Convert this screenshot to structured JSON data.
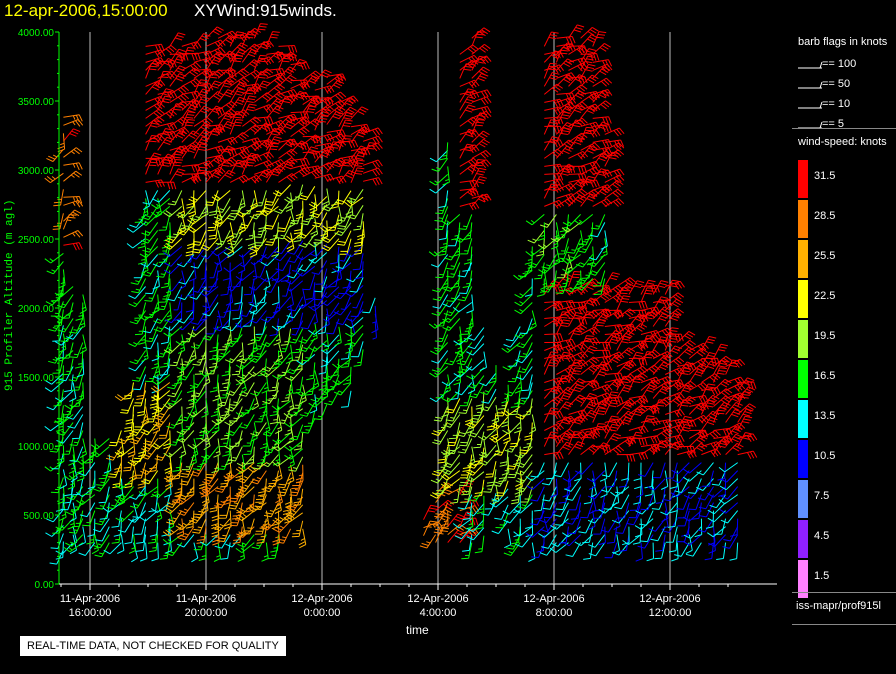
{
  "header": {
    "datetime": "12-apr-2006,15:00:00",
    "product": "XYWind:915winds."
  },
  "notice": "REAL-TIME DATA, NOT CHECKED FOR QUALITY",
  "source_label": "iss-mapr/prof915l",
  "legend": {
    "barb_title": "barb flags in knots",
    "barb_items": [
      "== 100",
      "== 50",
      "== 10",
      "== 5"
    ],
    "speed_title": "wind-speed: knots",
    "speed_levels": [
      {
        "value": "31.5",
        "color": "#ff0000"
      },
      {
        "value": "28.5",
        "color": "#ff8000"
      },
      {
        "value": "25.5",
        "color": "#ffb000"
      },
      {
        "value": "22.5",
        "color": "#ffff00"
      },
      {
        "value": "19.5",
        "color": "#a0ff30"
      },
      {
        "value": "16.5",
        "color": "#00ff00"
      },
      {
        "value": "13.5",
        "color": "#00ffff"
      },
      {
        "value": "10.5",
        "color": "#0000ff"
      },
      {
        "value": "7.5",
        "color": "#6090ff"
      },
      {
        "value": "4.5",
        "color": "#9020ff"
      },
      {
        "value": "1.5",
        "color": "#ff80ff"
      }
    ]
  },
  "chart_data": {
    "type": "scatter",
    "title": "",
    "xlabel": "time",
    "ylabel": "915 Profiler Altitude (m agl)",
    "ylim": [
      0,
      4000
    ],
    "yticks": [
      "0.00",
      "500.00",
      "1000.00",
      "1500.00",
      "2000.00",
      "2500.00",
      "3000.00",
      "3500.00",
      "4000.00"
    ],
    "xlim": [
      "11-Apr-2006 15:00:00",
      "12-Apr-2006 14:30:00"
    ],
    "xticks": [
      {
        "date": "11-Apr-2006",
        "time": "16:00:00"
      },
      {
        "date": "11-Apr-2006",
        "time": "20:00:00"
      },
      {
        "date": "12-Apr-2006",
        "time": "0:00:00"
      },
      {
        "date": "12-Apr-2006",
        "time": "4:00:00"
      },
      {
        "date": "12-Apr-2006",
        "time": "8:00:00"
      },
      {
        "date": "12-Apr-2006",
        "time": "12:00:00"
      }
    ],
    "grid": true,
    "profiles": [
      {
        "time": "11-Apr-2006 15:05",
        "bottom": 250,
        "top": 3400
      },
      {
        "time": "11-Apr-2006 15:25",
        "bottom": 300,
        "top": 2200
      },
      {
        "time": "11-Apr-2006 15:45",
        "bottom": 300,
        "top": 2100
      },
      {
        "time": "11-Apr-2006 16:10",
        "bottom": 300,
        "top": 1100
      },
      {
        "time": "11-Apr-2006 16:40",
        "bottom": 300,
        "top": 1100
      },
      {
        "time": "11-Apr-2006 17:05",
        "bottom": 300,
        "top": 1150
      },
      {
        "time": "11-Apr-2006 17:30",
        "bottom": 300,
        "top": 1500
      },
      {
        "time": "11-Apr-2006 17:55",
        "bottom": 300,
        "top": 3950
      },
      {
        "time": "11-Apr-2006 18:20",
        "bottom": 300,
        "top": 3850
      },
      {
        "time": "11-Apr-2006 18:45",
        "bottom": 300,
        "top": 3950
      },
      {
        "time": "11-Apr-2006 19:10",
        "bottom": 300,
        "top": 3950
      },
      {
        "time": "11-Apr-2006 19:35",
        "bottom": 300,
        "top": 3950
      },
      {
        "time": "11-Apr-2006 20:00",
        "bottom": 300,
        "top": 4000
      },
      {
        "time": "11-Apr-2006 20:25",
        "bottom": 300,
        "top": 4000
      },
      {
        "time": "11-Apr-2006 20:50",
        "bottom": 300,
        "top": 4000
      },
      {
        "time": "11-Apr-2006 21:15",
        "bottom": 300,
        "top": 4000
      },
      {
        "time": "11-Apr-2006 21:40",
        "bottom": 300,
        "top": 4000
      },
      {
        "time": "11-Apr-2006 22:05",
        "bottom": 300,
        "top": 3950
      },
      {
        "time": "11-Apr-2006 22:30",
        "bottom": 300,
        "top": 3900
      },
      {
        "time": "11-Apr-2006 22:55",
        "bottom": 400,
        "top": 3800
      },
      {
        "time": "11-Apr-2006 23:20",
        "bottom": 400,
        "top": 3700
      },
      {
        "time": "11-Apr-2006 23:45",
        "bottom": 1200,
        "top": 3650
      },
      {
        "time": "12-Apr-2006 00:10",
        "bottom": 1300,
        "top": 3700
      },
      {
        "time": "12-Apr-2006 00:35",
        "bottom": 1400,
        "top": 3500
      },
      {
        "time": "12-Apr-2006 01:00",
        "bottom": 1400,
        "top": 3400
      },
      {
        "time": "12-Apr-2006 01:25",
        "bottom": 1700,
        "top": 3300
      },
      {
        "time": "12-Apr-2006 01:50",
        "bottom": 1900,
        "top": 2100
      },
      {
        "time": "12-Apr-2006 03:30",
        "bottom": 350,
        "top": 500
      },
      {
        "time": "12-Apr-2006 03:55",
        "bottom": 300,
        "top": 700
      },
      {
        "time": "12-Apr-2006 04:20",
        "bottom": 300,
        "top": 3200
      },
      {
        "time": "12-Apr-2006 04:45",
        "bottom": 300,
        "top": 3850
      },
      {
        "time": "12-Apr-2006 05:10",
        "bottom": 300,
        "top": 4000
      },
      {
        "time": "12-Apr-2006 05:35",
        "bottom": 350,
        "top": 1900
      },
      {
        "time": "12-Apr-2006 06:00",
        "bottom": 600,
        "top": 1600
      },
      {
        "time": "12-Apr-2006 06:25",
        "bottom": 400,
        "top": 1500
      },
      {
        "time": "12-Apr-2006 06:50",
        "bottom": 300,
        "top": 1900
      },
      {
        "time": "12-Apr-2006 07:15",
        "bottom": 300,
        "top": 2500
      },
      {
        "time": "12-Apr-2006 07:40",
        "bottom": 300,
        "top": 3950
      },
      {
        "time": "12-Apr-2006 08:05",
        "bottom": 300,
        "top": 4000
      },
      {
        "time": "12-Apr-2006 08:30",
        "bottom": 300,
        "top": 4000
      },
      {
        "time": "12-Apr-2006 08:55",
        "bottom": 300,
        "top": 4000
      },
      {
        "time": "12-Apr-2006 09:20",
        "bottom": 300,
        "top": 3950
      },
      {
        "time": "12-Apr-2006 09:45",
        "bottom": 300,
        "top": 3300
      },
      {
        "time": "12-Apr-2006 10:10",
        "bottom": 300,
        "top": 2200
      },
      {
        "time": "12-Apr-2006 10:35",
        "bottom": 300,
        "top": 2100
      },
      {
        "time": "12-Apr-2006 11:00",
        "bottom": 300,
        "top": 2200
      },
      {
        "time": "12-Apr-2006 11:25",
        "bottom": 300,
        "top": 2100
      },
      {
        "time": "12-Apr-2006 11:50",
        "bottom": 300,
        "top": 2200
      },
      {
        "time": "12-Apr-2006 12:15",
        "bottom": 300,
        "top": 1800
      },
      {
        "time": "12-Apr-2006 12:40",
        "bottom": 300,
        "top": 1700
      },
      {
        "time": "12-Apr-2006 13:05",
        "bottom": 300,
        "top": 1700
      },
      {
        "time": "12-Apr-2006 13:30",
        "bottom": 300,
        "top": 1650
      },
      {
        "time": "12-Apr-2006 13:55",
        "bottom": 300,
        "top": 1600
      },
      {
        "time": "12-Apr-2006 14:20",
        "bottom": 300,
        "top": 1500
      }
    ],
    "level_step_m": 58,
    "speed_field": [
      {
        "time_from": "11-Apr-2006 15:00",
        "time_to": "11-Apr-2006 19:00",
        "alt_from": 0,
        "alt_to": 800,
        "speed_knots": 15
      },
      {
        "time_from": "11-Apr-2006 17:00",
        "time_to": "11-Apr-2006 19:00",
        "alt_from": 800,
        "alt_to": 1500,
        "speed_knots": 24
      },
      {
        "time_from": "11-Apr-2006 15:00",
        "time_to": "11-Apr-2006 15:50",
        "alt_from": 2400,
        "alt_to": 3400,
        "speed_knots": 29
      },
      {
        "time_from": "11-Apr-2006 19:00",
        "time_to": "11-Apr-2006 23:30",
        "alt_from": 400,
        "alt_to": 900,
        "speed_knots": 26
      },
      {
        "time_from": "11-Apr-2006 19:00",
        "time_to": "11-Apr-2006 23:30",
        "alt_from": 900,
        "alt_to": 1900,
        "speed_knots": 18
      },
      {
        "time_from": "11-Apr-2006 19:00",
        "time_to": "12-Apr-2006 02:00",
        "alt_from": 1900,
        "alt_to": 2500,
        "speed_knots": 11
      },
      {
        "time_from": "11-Apr-2006 19:00",
        "time_to": "12-Apr-2006 02:00",
        "alt_from": 2500,
        "alt_to": 2900,
        "speed_knots": 21
      },
      {
        "time_from": "11-Apr-2006 17:40",
        "time_to": "12-Apr-2006 02:00",
        "alt_from": 2900,
        "alt_to": 4000,
        "speed_knots": 32
      },
      {
        "time_from": "12-Apr-2006 03:20",
        "time_to": "12-Apr-2006 05:00",
        "alt_from": 300,
        "alt_to": 700,
        "speed_knots": 29
      },
      {
        "time_from": "12-Apr-2006 04:00",
        "time_to": "12-Apr-2006 07:30",
        "alt_from": 700,
        "alt_to": 1400,
        "speed_knots": 20
      },
      {
        "time_from": "12-Apr-2006 05:00",
        "time_to": "12-Apr-2006 07:30",
        "alt_from": 300,
        "alt_to": 700,
        "speed_knots": 14
      },
      {
        "time_from": "12-Apr-2006 07:30",
        "time_to": "12-Apr-2006 14:30",
        "alt_from": 300,
        "alt_to": 900,
        "speed_knots": 12
      },
      {
        "time_from": "12-Apr-2006 07:30",
        "time_to": "12-Apr-2006 14:30",
        "alt_from": 900,
        "alt_to": 2200,
        "speed_knots": 32
      },
      {
        "time_from": "12-Apr-2006 07:30",
        "time_to": "12-Apr-2006 09:30",
        "alt_from": 2200,
        "alt_to": 2700,
        "speed_knots": 17
      },
      {
        "time_from": "12-Apr-2006 04:30",
        "time_to": "12-Apr-2006 10:00",
        "alt_from": 2700,
        "alt_to": 4000,
        "speed_knots": 32
      }
    ]
  },
  "colors": {
    "background": "#000000",
    "axis": "#00ff00",
    "grid": "#bbbbbb",
    "date_text": "#ffff00"
  }
}
